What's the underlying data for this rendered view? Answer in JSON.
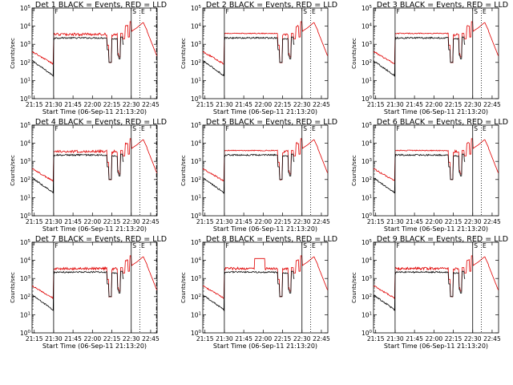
{
  "figure": {
    "background": "#ffffff",
    "colors": {
      "events": "#000000",
      "lld": "#e00000",
      "axes": "#000000"
    }
  },
  "chart_data": [
    {
      "type": "line",
      "title": "Det 1 BLACK = Events, RED = LLD",
      "xlabel": "Start Time (06-Sep-11 21:13:20)",
      "ylabel": "Counts/sec",
      "x_tick_labels": [
        "21:15",
        "21:30",
        "21:45",
        "22:00",
        "22:15",
        "22:30",
        "22:45"
      ],
      "y_tick_labels": [
        "10^0",
        "10^1",
        "10^2",
        "10^3",
        "10^4",
        "10^5"
      ],
      "xlim_minutes_from_start": [
        0,
        96.67
      ],
      "ylim": [
        1,
        100000
      ],
      "y_scale": "log",
      "vertical_markers": [
        {
          "t_minutes": 16.67,
          "style": "solid",
          "label": "F"
        },
        {
          "t_minutes": 76.67,
          "style": "solid",
          "label": "S"
        },
        {
          "t_minutes": 83.33,
          "style": "dotted",
          "label": "E"
        },
        {
          "t_minutes": 96.17,
          "style": "dashdot",
          "label": ""
        }
      ],
      "series": [
        {
          "name": "Events",
          "color": "#000000",
          "profile": "det1_events"
        },
        {
          "name": "LLD",
          "color": "#e00000",
          "profile": "det1_lld"
        }
      ],
      "grid": false,
      "legend": "none"
    },
    {
      "type": "line",
      "title": "Det 2 BLACK = Events, RED = LLD",
      "xlabel": "Start Time (06-Sep-11 21:13:20)",
      "ylabel": "Counts/sec",
      "x_tick_labels": [
        "21:15",
        "21:30",
        "21:45",
        "22:00",
        "22:15",
        "22:30",
        "22:45"
      ],
      "y_tick_labels": [
        "10^0",
        "10^1",
        "10^2",
        "10^3",
        "10^4",
        "10^5"
      ],
      "xlim_minutes_from_start": [
        0,
        96.67
      ],
      "ylim": [
        1,
        100000
      ],
      "y_scale": "log",
      "vertical_markers": [
        {
          "t_minutes": 16.67,
          "style": "solid",
          "label": "F"
        },
        {
          "t_minutes": 76.67,
          "style": "solid",
          "label": "S"
        },
        {
          "t_minutes": 83.33,
          "style": "dotted",
          "label": "E"
        }
      ],
      "series": [
        {
          "name": "Events",
          "color": "#000000",
          "profile": "det2_events"
        },
        {
          "name": "LLD",
          "color": "#e00000",
          "profile": "det2_lld"
        }
      ],
      "grid": false,
      "legend": "none"
    },
    {
      "type": "line",
      "title": "Det 3 BLACK = Events, RED = LLD",
      "xlabel": "Start Time (06-Sep-11 21:13:20)",
      "ylabel": "Counts/sec",
      "x_tick_labels": [
        "21:15",
        "21:30",
        "21:45",
        "22:00",
        "22:15",
        "22:30",
        "22:45"
      ],
      "y_tick_labels": [
        "10^0",
        "10^1",
        "10^2",
        "10^3",
        "10^4",
        "10^5"
      ],
      "xlim_minutes_from_start": [
        0,
        96.67
      ],
      "ylim": [
        1,
        100000
      ],
      "y_scale": "log",
      "vertical_markers": [
        {
          "t_minutes": 16.67,
          "style": "solid",
          "label": "F"
        },
        {
          "t_minutes": 76.67,
          "style": "solid",
          "label": "S"
        },
        {
          "t_minutes": 83.33,
          "style": "dotted",
          "label": "E"
        }
      ],
      "series": [
        {
          "name": "Events",
          "color": "#000000",
          "profile": "det3_events"
        },
        {
          "name": "LLD",
          "color": "#e00000",
          "profile": "det3_lld"
        }
      ],
      "grid": false,
      "legend": "none"
    },
    {
      "type": "line",
      "title": "Det 4 BLACK = Events, RED = LLD",
      "xlabel": "Start Time (06-Sep-11 21:13:20)",
      "ylabel": "Counts/sec",
      "x_tick_labels": [
        "21:15",
        "21:30",
        "21:45",
        "22:00",
        "22:15",
        "22:30",
        "22:45"
      ],
      "y_tick_labels": [
        "10^0",
        "10^1",
        "10^2",
        "10^3",
        "10^4",
        "10^5"
      ],
      "xlim_minutes_from_start": [
        0,
        96.67
      ],
      "ylim": [
        1,
        100000
      ],
      "y_scale": "log",
      "vertical_markers": [
        {
          "t_minutes": 16.67,
          "style": "solid",
          "label": "F"
        },
        {
          "t_minutes": 76.67,
          "style": "solid",
          "label": "S"
        },
        {
          "t_minutes": 83.33,
          "style": "dotted",
          "label": "E"
        },
        {
          "t_minutes": 96.17,
          "style": "dashdot",
          "label": ""
        }
      ],
      "series": [
        {
          "name": "Events",
          "color": "#000000",
          "profile": "det4_events"
        },
        {
          "name": "LLD",
          "color": "#e00000",
          "profile": "det4_lld"
        }
      ],
      "grid": false,
      "legend": "none"
    },
    {
      "type": "line",
      "title": "Det 5 BLACK = Events, RED = LLD",
      "xlabel": "Start Time (06-Sep-11 21:13:20)",
      "ylabel": "Counts/sec",
      "x_tick_labels": [
        "21:15",
        "21:30",
        "21:45",
        "22:00",
        "22:15",
        "22:30",
        "22:45"
      ],
      "y_tick_labels": [
        "10^0",
        "10^1",
        "10^2",
        "10^3",
        "10^4",
        "10^5"
      ],
      "xlim_minutes_from_start": [
        0,
        96.67
      ],
      "ylim": [
        1,
        100000
      ],
      "y_scale": "log",
      "vertical_markers": [
        {
          "t_minutes": 16.67,
          "style": "solid",
          "label": "F"
        },
        {
          "t_minutes": 76.67,
          "style": "solid",
          "label": "S"
        },
        {
          "t_minutes": 83.33,
          "style": "dotted",
          "label": "E"
        }
      ],
      "series": [
        {
          "name": "Events",
          "color": "#000000",
          "profile": "det5_events"
        },
        {
          "name": "LLD",
          "color": "#e00000",
          "profile": "det5_lld"
        }
      ],
      "grid": false,
      "legend": "none"
    },
    {
      "type": "line",
      "title": "Det 6 BLACK = Events, RED = LLD",
      "xlabel": "Start Time (06-Sep-11 21:13:20)",
      "ylabel": "Counts/sec",
      "x_tick_labels": [
        "21:15",
        "21:30",
        "21:45",
        "22:00",
        "22:15",
        "22:30",
        "22:45"
      ],
      "y_tick_labels": [
        "10^0",
        "10^1",
        "10^2",
        "10^3",
        "10^4",
        "10^5"
      ],
      "xlim_minutes_from_start": [
        0,
        96.67
      ],
      "ylim": [
        1,
        100000
      ],
      "y_scale": "log",
      "vertical_markers": [
        {
          "t_minutes": 16.67,
          "style": "solid",
          "label": "F"
        },
        {
          "t_minutes": 76.67,
          "style": "solid",
          "label": "S"
        },
        {
          "t_minutes": 83.33,
          "style": "dotted",
          "label": "E"
        }
      ],
      "series": [
        {
          "name": "Events",
          "color": "#000000",
          "profile": "det6_events"
        },
        {
          "name": "LLD",
          "color": "#e00000",
          "profile": "det6_lld"
        }
      ],
      "grid": false,
      "legend": "none"
    },
    {
      "type": "line",
      "title": "Det 7 BLACK = Events, RED = LLD",
      "xlabel": "Start Time (06-Sep-11 21:13:20)",
      "ylabel": "Counts/sec",
      "x_tick_labels": [
        "21:15",
        "21:30",
        "21:45",
        "22:00",
        "22:15",
        "22:30",
        "22:45"
      ],
      "y_tick_labels": [
        "10^0",
        "10^1",
        "10^2",
        "10^3",
        "10^4",
        "10^5"
      ],
      "xlim_minutes_from_start": [
        0,
        96.67
      ],
      "ylim": [
        1,
        100000
      ],
      "y_scale": "log",
      "vertical_markers": [
        {
          "t_minutes": 16.67,
          "style": "solid",
          "label": "F"
        },
        {
          "t_minutes": 76.67,
          "style": "solid",
          "label": "S"
        },
        {
          "t_minutes": 83.33,
          "style": "dotted",
          "label": "E"
        },
        {
          "t_minutes": 96.17,
          "style": "dashdot",
          "label": ""
        }
      ],
      "series": [
        {
          "name": "Events",
          "color": "#000000",
          "profile": "det7_events"
        },
        {
          "name": "LLD",
          "color": "#e00000",
          "profile": "det7_lld"
        }
      ],
      "grid": false,
      "legend": "none"
    },
    {
      "type": "line",
      "title": "Det 8 BLACK = Events, RED = LLD",
      "xlabel": "Start Time (06-Sep-11 21:13:20)",
      "ylabel": "Counts/sec",
      "x_tick_labels": [
        "21:15",
        "21:30",
        "21:45",
        "22:00",
        "22:15",
        "22:30",
        "22:45"
      ],
      "y_tick_labels": [
        "10^0",
        "10^1",
        "10^2",
        "10^3",
        "10^4",
        "10^5"
      ],
      "xlim_minutes_from_start": [
        0,
        96.67
      ],
      "ylim": [
        1,
        100000
      ],
      "y_scale": "log",
      "vertical_markers": [
        {
          "t_minutes": 16.67,
          "style": "solid",
          "label": "F"
        },
        {
          "t_minutes": 76.67,
          "style": "solid",
          "label": "S"
        },
        {
          "t_minutes": 83.33,
          "style": "dotted",
          "label": "E"
        }
      ],
      "series": [
        {
          "name": "Events",
          "color": "#000000",
          "profile": "det8_events"
        },
        {
          "name": "LLD",
          "color": "#e00000",
          "profile": "det8_lld"
        }
      ],
      "grid": false,
      "legend": "none"
    },
    {
      "type": "line",
      "title": "Det 9 BLACK = Events, RED = LLD",
      "xlabel": "Start Time (06-Sep-11 21:13:20)",
      "ylabel": "Counts/sec",
      "x_tick_labels": [
        "21:15",
        "21:30",
        "21:45",
        "22:00",
        "22:15",
        "22:30",
        "22:45"
      ],
      "y_tick_labels": [
        "10^0",
        "10^1",
        "10^2",
        "10^3",
        "10^4",
        "10^5"
      ],
      "xlim_minutes_from_start": [
        0,
        96.67
      ],
      "ylim": [
        1,
        100000
      ],
      "y_scale": "log",
      "vertical_markers": [
        {
          "t_minutes": 16.67,
          "style": "solid",
          "label": "F"
        },
        {
          "t_minutes": 76.67,
          "style": "solid",
          "label": "S"
        },
        {
          "t_minutes": 83.33,
          "style": "dotted",
          "label": "E"
        }
      ],
      "series": [
        {
          "name": "Events",
          "color": "#000000",
          "profile": "det9_events"
        },
        {
          "name": "LLD",
          "color": "#e00000",
          "profile": "det9_lld"
        }
      ],
      "grid": false,
      "legend": "none"
    }
  ]
}
